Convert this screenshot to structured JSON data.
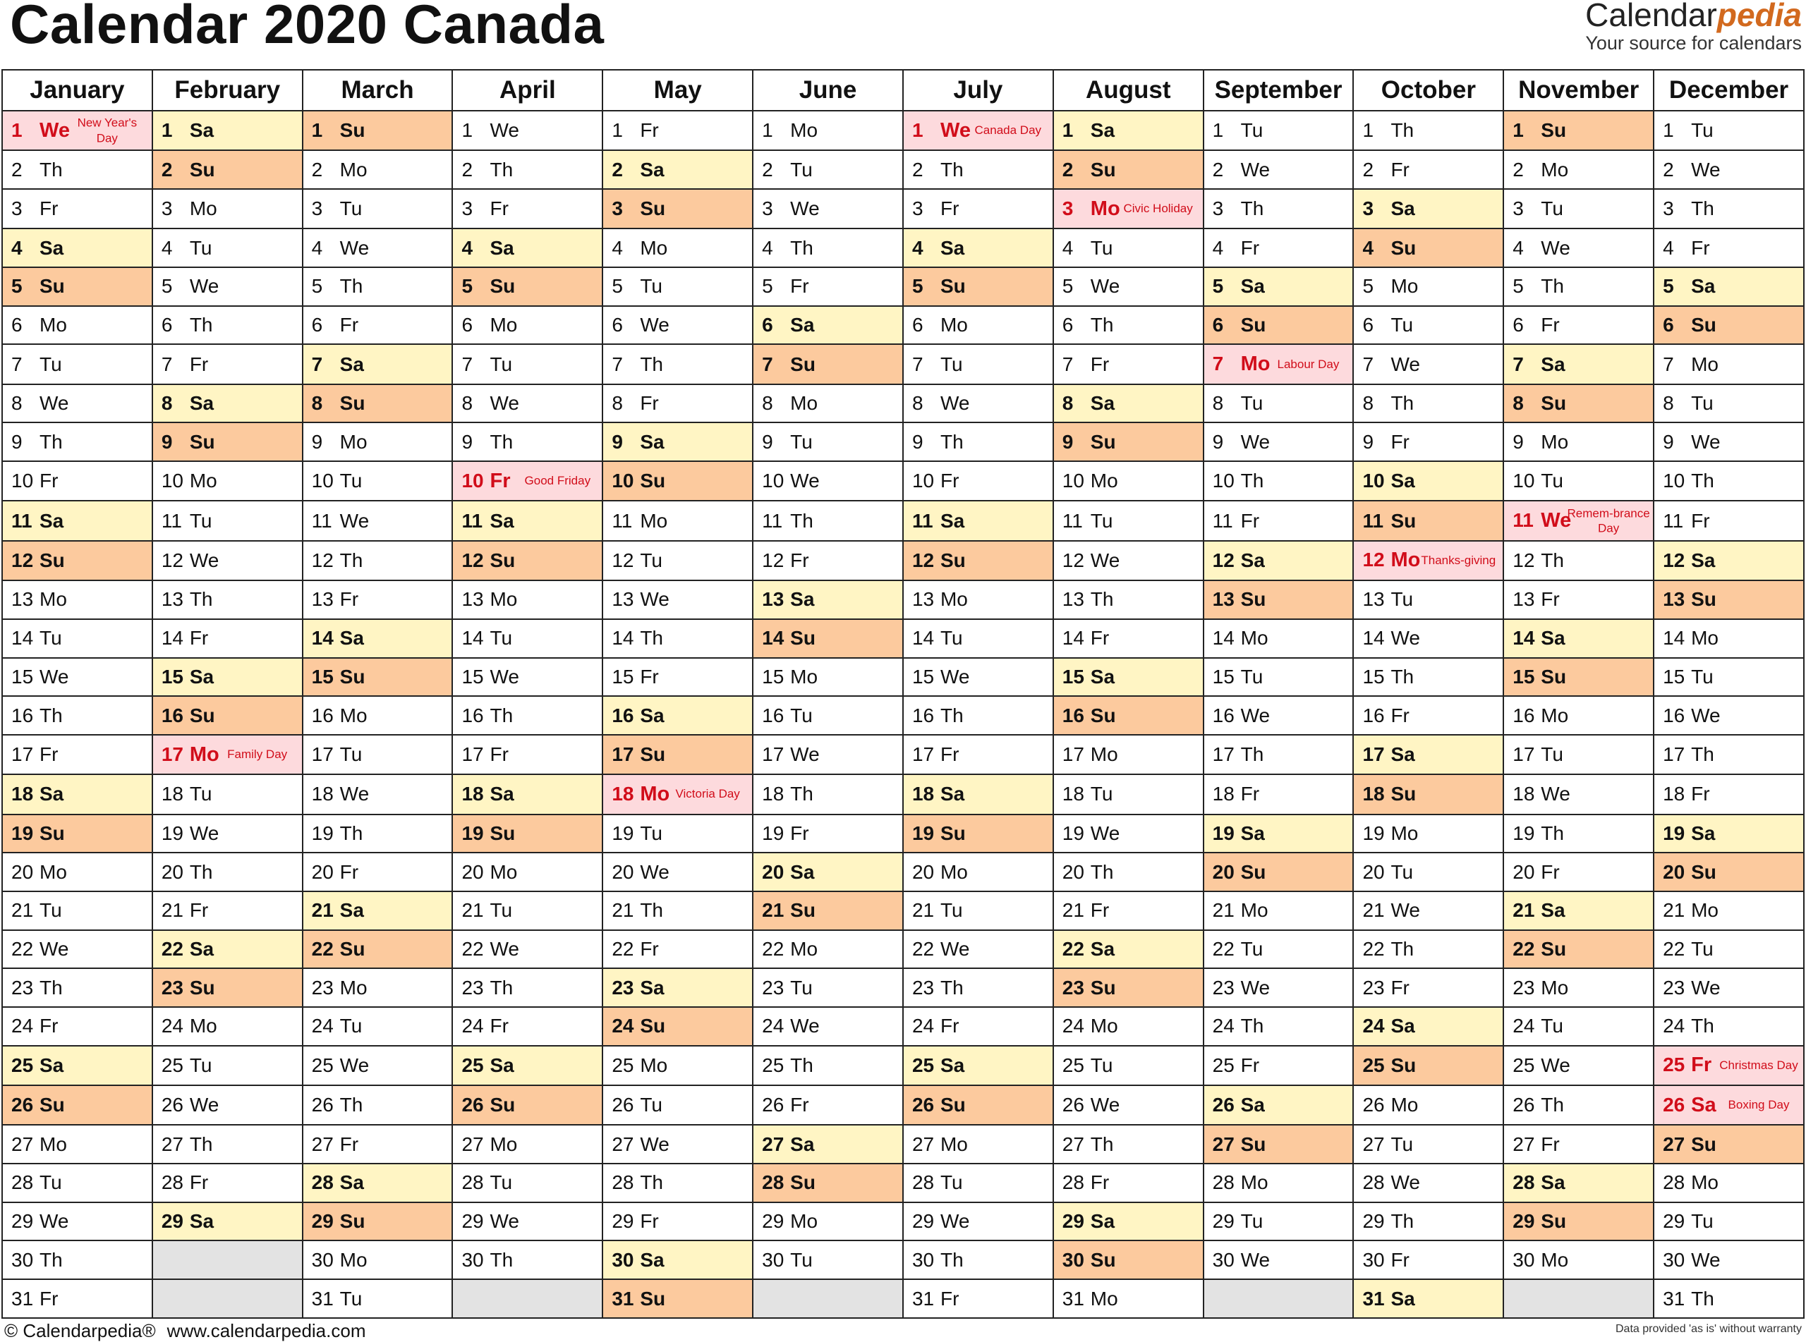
{
  "title": "Calendar 2020 Canada",
  "brand": {
    "name_prefix": "Calendar",
    "name_accent": "pedia",
    "tagline": "Your source for calendars"
  },
  "colors": {
    "saturday": "#fff5c4",
    "sunday": "#fcca9e",
    "holiday": "#fddadd",
    "holiday_text": "#d10d1a",
    "empty": "#e3e3e3"
  },
  "months": [
    {
      "name": "January",
      "days": 31,
      "start": 3,
      "holidays": {
        "1": "New Year's Day"
      }
    },
    {
      "name": "February",
      "days": 29,
      "start": 6,
      "holidays": {
        "17": "Family Day"
      }
    },
    {
      "name": "March",
      "days": 31,
      "start": 0,
      "holidays": {}
    },
    {
      "name": "April",
      "days": 30,
      "start": 3,
      "holidays": {
        "10": "Good Friday"
      }
    },
    {
      "name": "May",
      "days": 31,
      "start": 5,
      "holidays": {
        "18": "Victoria Day"
      }
    },
    {
      "name": "June",
      "days": 30,
      "start": 1,
      "holidays": {}
    },
    {
      "name": "July",
      "days": 31,
      "start": 3,
      "holidays": {
        "1": "Canada Day"
      }
    },
    {
      "name": "August",
      "days": 31,
      "start": 6,
      "holidays": {
        "3": "Civic Holiday"
      }
    },
    {
      "name": "September",
      "days": 30,
      "start": 2,
      "holidays": {
        "7": "Labour Day"
      }
    },
    {
      "name": "October",
      "days": 31,
      "start": 4,
      "holidays": {
        "12": "Thanks-giving"
      }
    },
    {
      "name": "November",
      "days": 30,
      "start": 0,
      "holidays": {
        "11": "Remem-brance Day"
      }
    },
    {
      "name": "December",
      "days": 31,
      "start": 2,
      "holidays": {
        "25": "Christmas Day",
        "26": "Boxing Day"
      }
    }
  ],
  "weekdays": [
    "Su",
    "Mo",
    "Tu",
    "We",
    "Th",
    "Fr",
    "Sa"
  ],
  "footer": {
    "copyright": "© Calendarpedia®",
    "url": "www.calendarpedia.com",
    "disclaimer": "Data provided 'as is' without warranty"
  }
}
